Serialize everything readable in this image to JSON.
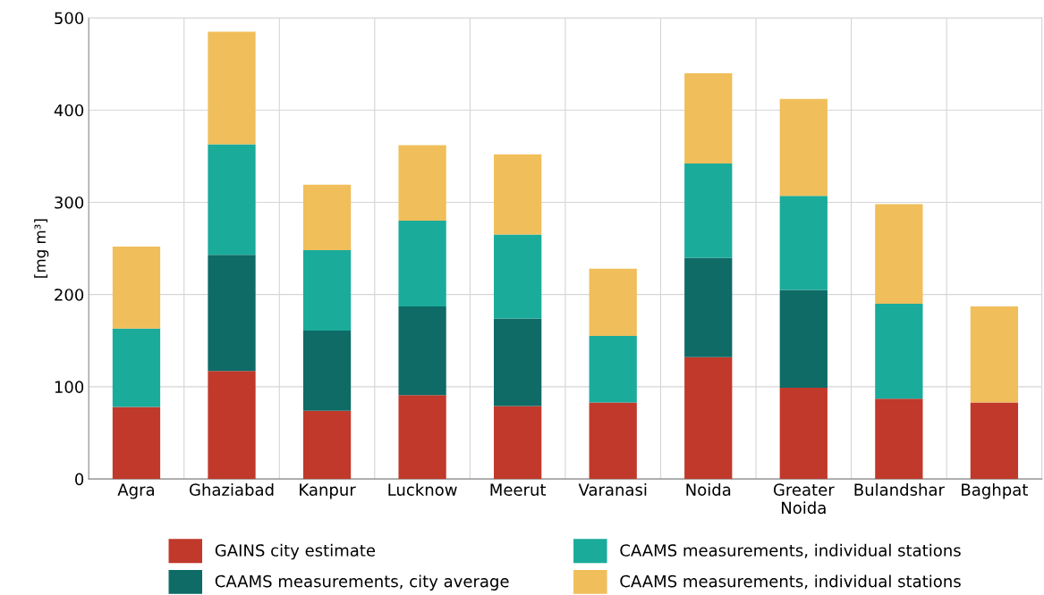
{
  "chart_data": {
    "type": "bar",
    "stacked": true,
    "ylabel": "[mg m³]",
    "categories": [
      "Agra",
      "Ghaziabad",
      "Kanpur",
      "Lucknow",
      "Meerut",
      "Varanasi",
      "Noida",
      "Greater\nNoida",
      "Bulandshar",
      "Baghpat"
    ],
    "series": [
      {
        "name": "GAINS city estimate",
        "color": "#c0392b",
        "values": [
          78,
          117,
          74,
          91,
          79,
          83,
          132,
          99,
          87,
          83
        ]
      },
      {
        "name": "CAAMS measurements, city average",
        "color": "#0e6b66",
        "values": [
          null,
          126,
          87,
          96,
          95,
          null,
          108,
          106,
          null,
          null
        ]
      },
      {
        "name": "CAAMS measurements, individual stations",
        "color": "#1aab9b",
        "values": [
          85,
          120,
          87,
          93,
          91,
          72,
          102,
          102,
          103,
          null
        ]
      },
      {
        "name": "CAAMS measurements, individual stations",
        "color": "#f0be5a",
        "values": [
          89,
          122,
          71,
          82,
          87,
          73,
          98,
          105,
          108,
          104
        ]
      }
    ],
    "ylim": [
      0,
      500
    ],
    "yticks": [
      0,
      100,
      200,
      300,
      400,
      500
    ],
    "grid": true,
    "legend": "bottom"
  }
}
